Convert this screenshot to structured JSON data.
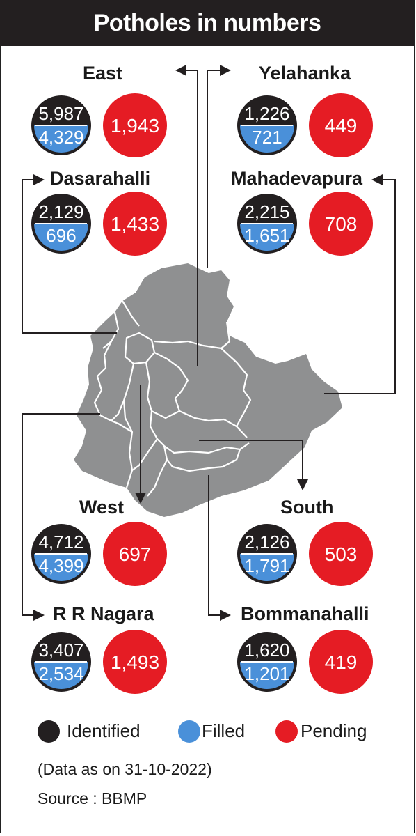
{
  "title": "Potholes in numbers",
  "colors": {
    "identified": "#231f20",
    "filled": "#4a90d9",
    "pending": "#e51c24",
    "map": "#8f9091"
  },
  "chart_data": {
    "type": "table",
    "columns": [
      "Identified",
      "Filled",
      "Pending"
    ],
    "zones": [
      {
        "name": "East",
        "identified": "5,987",
        "filled": "4,329",
        "pending": "1,943"
      },
      {
        "name": "Yelahanka",
        "identified": "1,226",
        "filled": "721",
        "pending": "449"
      },
      {
        "name": "Dasarahalli",
        "identified": "2,129",
        "filled": "696",
        "pending": "1,433"
      },
      {
        "name": "Mahadevapura",
        "identified": "2,215",
        "filled": "1,651",
        "pending": "708"
      },
      {
        "name": "West",
        "identified": "4,712",
        "filled": "4,399",
        "pending": "697"
      },
      {
        "name": "South",
        "identified": "2,126",
        "filled": "1,791",
        "pending": "503"
      },
      {
        "name": "R R Nagara",
        "identified": "3,407",
        "filled": "2,534",
        "pending": "1,493"
      },
      {
        "name": "Bommanahalli",
        "identified": "1,620",
        "filled": "1,201",
        "pending": "419"
      }
    ]
  },
  "legend": {
    "identified": "Identified",
    "filled": "Filled",
    "pending": "Pending"
  },
  "note": "(Data as on 31-10-2022)",
  "source": "Source : BBMP"
}
